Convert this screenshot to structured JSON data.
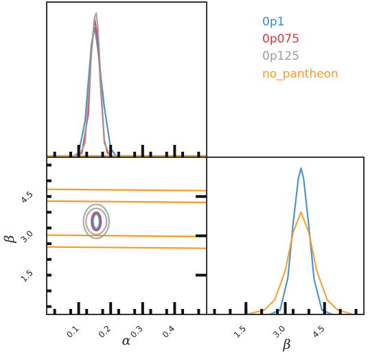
{
  "chart_data": {
    "type": "corner",
    "parameters": [
      {
        "name": "alpha",
        "label": "α",
        "range": [
          0,
          0.5
        ],
        "ticks": [
          0.1,
          0.2,
          0.3,
          0.4
        ],
        "tick_labels": [
          "0.1",
          "0.2",
          "0.3",
          "0.4"
        ]
      },
      {
        "name": "beta",
        "label": "β",
        "range": [
          0,
          6
        ],
        "ticks": [
          1.5,
          3.0,
          4.5
        ],
        "tick_labels": [
          "1.5",
          "3.0",
          "4.5"
        ]
      }
    ],
    "legend": {
      "placement": "top-right"
    },
    "series": [
      {
        "name": "0p1",
        "color": "#3a87c8",
        "alpha_pdf": {
          "x": [
            0.08,
            0.1,
            0.12,
            0.14,
            0.15,
            0.16,
            0.17,
            0.18,
            0.2,
            0.22
          ],
          "y": [
            0,
            0.03,
            0.25,
            0.78,
            0.9,
            0.75,
            0.55,
            0.35,
            0.06,
            0
          ]
        },
        "beta_pdf": {
          "x": [
            2.4,
            2.8,
            3.1,
            3.3,
            3.5,
            3.6,
            3.7,
            3.9,
            4.1,
            4.4,
            4.8
          ],
          "y": [
            0,
            0.03,
            0.25,
            0.62,
            0.93,
            1.0,
            0.93,
            0.6,
            0.24,
            0.03,
            0
          ]
        },
        "contours": [
          {
            "center": [
              0.155,
              3.55
            ],
            "half_width": [
              0.013,
              0.33
            ]
          },
          {
            "center": [
              0.155,
              3.55
            ],
            "half_width": [
              0.01,
              0.27
            ]
          }
        ]
      },
      {
        "name": "0p075",
        "color": "#d6363b",
        "alpha_pdf": {
          "x": [
            0.09,
            0.11,
            0.13,
            0.14,
            0.15,
            0.16,
            0.17,
            0.18,
            0.19,
            0.21
          ],
          "y": [
            0,
            0.03,
            0.3,
            0.75,
            0.96,
            0.82,
            0.45,
            0.12,
            0.03,
            0
          ]
        },
        "contours": [
          {
            "center": [
              0.155,
              3.55
            ],
            "half_width": [
              0.015,
              0.35
            ]
          }
        ]
      },
      {
        "name": "0p125",
        "color": "#9b9b9b",
        "alpha_pdf": {
          "x": [
            0.1,
            0.12,
            0.14,
            0.15,
            0.155,
            0.16,
            0.17,
            0.18,
            0.2
          ],
          "y": [
            0,
            0.1,
            0.72,
            0.97,
            1.0,
            0.9,
            0.5,
            0.1,
            0
          ]
        },
        "contours": [
          {
            "center": [
              0.155,
              3.55
            ],
            "half_width": [
              0.04,
              0.65
            ]
          },
          {
            "center": [
              0.155,
              3.55
            ],
            "half_width": [
              0.032,
              0.5
            ]
          }
        ]
      },
      {
        "name": "no_pantheon",
        "color": "#f59a25",
        "alpha_pdf": {
          "x": [
            0,
            0.5
          ],
          "y": [
            0.01,
            0.01
          ]
        },
        "beta_pdf": {
          "x": [
            1.5,
            2.2,
            2.6,
            3.0,
            3.3,
            3.6,
            3.9,
            4.2,
            4.6,
            5.0,
            5.6
          ],
          "y": [
            0,
            0.03,
            0.1,
            0.3,
            0.56,
            0.7,
            0.56,
            0.3,
            0.1,
            0.03,
            0
          ]
        },
        "bands": [
          {
            "beta": [
              2.55,
              4.75
            ]
          },
          {
            "beta": [
              3.0,
              4.3
            ]
          }
        ]
      }
    ]
  }
}
